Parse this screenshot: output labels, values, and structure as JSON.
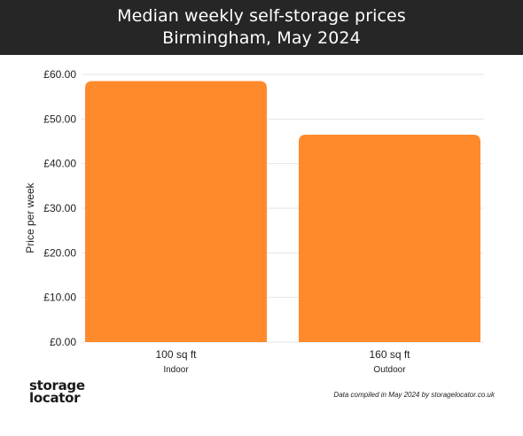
{
  "header": {
    "title_line1": "Median weekly self-storage prices",
    "title_line2": "Birmingham, May 2024"
  },
  "footer": {
    "logo_line1": "storage",
    "logo_line2": "locator",
    "source": "Data compiled in May 2024 by storagelocator.co.uk"
  },
  "colors": {
    "bar": "#FF8A2B",
    "header_bg": "#262626",
    "grid": "#e6e6e6"
  },
  "chart_data": {
    "type": "bar",
    "title": "Median weekly self-storage prices Birmingham, May 2024",
    "categories": [
      "100 sq ft",
      "160 sq ft"
    ],
    "category_sublabels": [
      "Indoor",
      "Outdoor"
    ],
    "values": [
      58.5,
      46.5
    ],
    "ylabel": "Price per week",
    "ylim": [
      0,
      60
    ],
    "yticks": [
      0,
      10,
      20,
      30,
      40,
      50,
      60
    ],
    "ytick_labels": [
      "£0.00",
      "£10.00",
      "£20.00",
      "£30.00",
      "£40.00",
      "£50.00",
      "£60.00"
    ],
    "grid": true
  }
}
